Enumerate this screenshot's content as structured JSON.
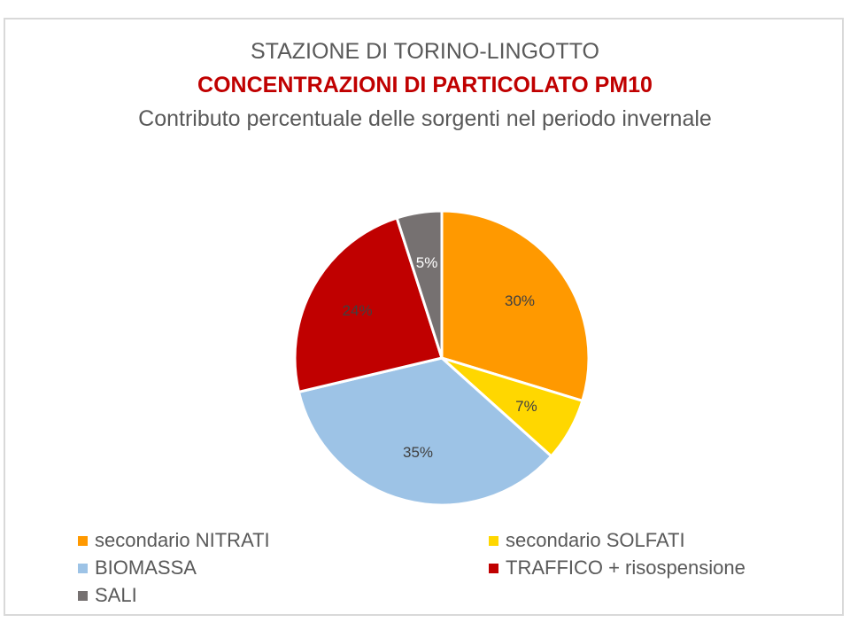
{
  "chart_data": {
    "type": "pie",
    "title": "STAZIONE DI TORINO-LINGOTTO",
    "subtitle": "CONCENTRAZIONI DI PARTICOLATO PM10",
    "subtitle2": "Contributo percentuale delle sorgenti nel periodo invernale",
    "legend_position": "bottom",
    "slices": [
      {
        "name": "secondario NITRATI",
        "value": 30,
        "label": "30%",
        "color": "#ff9900"
      },
      {
        "name": "secondario SOLFATI",
        "value": 7,
        "label": "7%",
        "color": "#ffd700"
      },
      {
        "name": "BIOMASSA",
        "value": 35,
        "label": "35%",
        "color": "#9dc3e6"
      },
      {
        "name": "TRAFFICO + risospensione",
        "value": 24,
        "label": "24%",
        "color": "#c00000"
      },
      {
        "name": "SALI",
        "value": 5,
        "label": "5%",
        "color": "#767171"
      }
    ]
  }
}
